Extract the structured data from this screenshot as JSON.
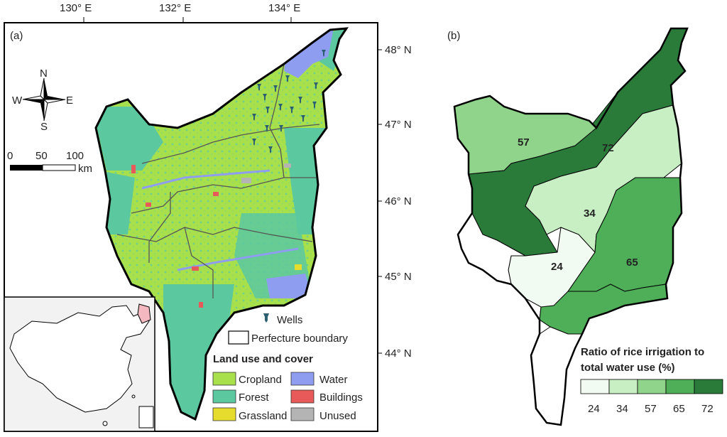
{
  "panel_a": {
    "label": "(a)",
    "lon_ticks": [
      "130° E",
      "132° E",
      "134° E"
    ],
    "lat_ticks": [
      "48° N",
      "47° N",
      "46° N",
      "45° N",
      "44° N"
    ],
    "compass": {
      "n": "N",
      "s": "S",
      "e": "E",
      "w": "W"
    },
    "scale": {
      "t0": "0",
      "t1": "50",
      "t2": "100",
      "unit": "km"
    },
    "wells_label": "Wells",
    "boundary_label": "Perfecture boundary",
    "land_title": "Land use and cover",
    "land_classes": [
      {
        "name": "Cropland",
        "color": "#a8e04c"
      },
      {
        "name": "Forest",
        "color": "#5cc8a0"
      },
      {
        "name": "Grassland",
        "color": "#e6dc2e"
      },
      {
        "name": "Water",
        "color": "#8f9df0"
      },
      {
        "name": "Buildings",
        "color": "#e85a5a"
      },
      {
        "name": "Unused",
        "color": "#b4b4b4"
      }
    ]
  },
  "panel_b": {
    "label": "(b)",
    "legend_title_1": "Ratio of rice irrigation to",
    "legend_title_2": "total water use (%)",
    "legend": [
      {
        "value": "24",
        "color": "#f2fbf1"
      },
      {
        "value": "34",
        "color": "#c8eec4"
      },
      {
        "value": "57",
        "color": "#8fd48a"
      },
      {
        "value": "65",
        "color": "#4fae58"
      },
      {
        "value": "72",
        "color": "#2a7a3a"
      }
    ],
    "region_labels": [
      "57",
      "72",
      "34",
      "24",
      "65"
    ]
  }
}
